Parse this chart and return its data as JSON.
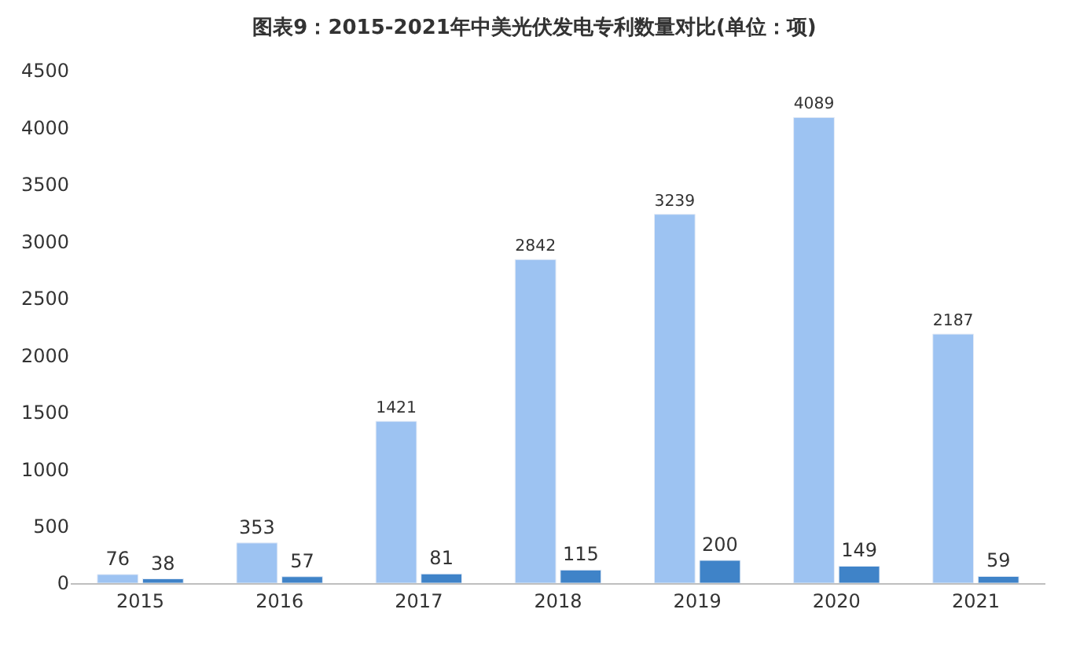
{
  "chart_data": {
    "type": "bar",
    "title": "图表9：2015-2021年中美光伏发电专利数量对比(单位：项)",
    "categories": [
      "2015",
      "2016",
      "2017",
      "2018",
      "2019",
      "2020",
      "2021"
    ],
    "series": [
      {
        "color": "#9dc3f2",
        "values": [
          76,
          353,
          1421,
          2842,
          3239,
          4089,
          2187
        ]
      },
      {
        "color": "#3f83c8",
        "values": [
          38,
          57,
          81,
          115,
          200,
          149,
          59
        ]
      }
    ],
    "ylim": [
      0,
      4500
    ],
    "yticks": [
      0,
      500,
      1000,
      1500,
      2000,
      2500,
      3000,
      3500,
      4000,
      4500
    ],
    "data_labels": true
  }
}
